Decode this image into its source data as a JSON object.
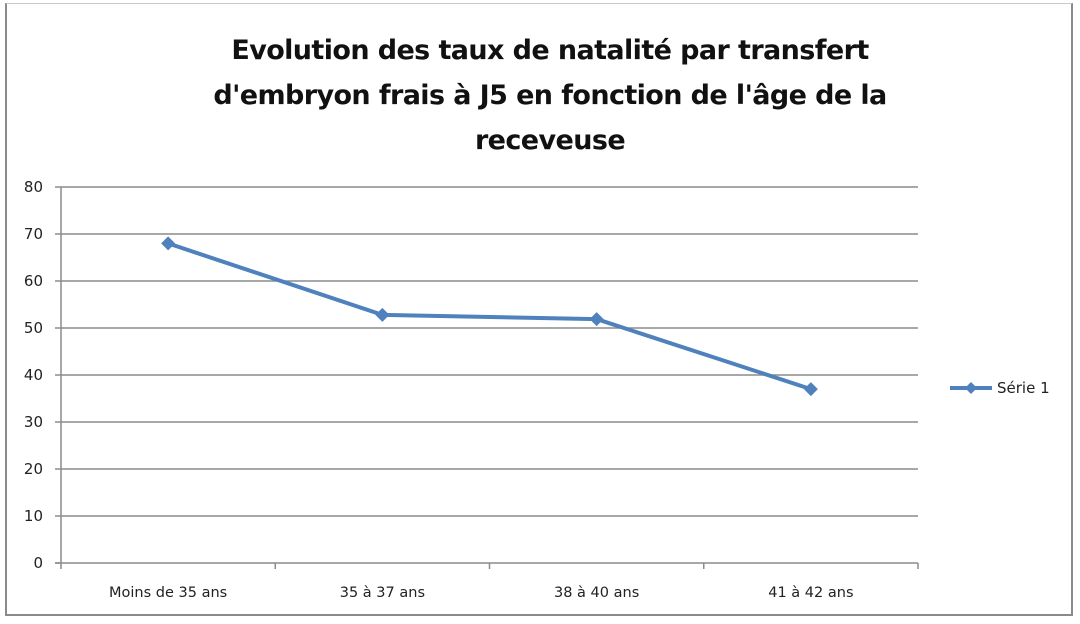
{
  "chart_data": {
    "type": "line",
    "title": "Evolution des taux de natalité par transfert d'embryon frais à J5 en fonction de l'âge de la receveuse",
    "title_lines": [
      "Evolution des taux de natalité par transfert",
      "d'embryon frais à J5 en fonction de l'âge de la",
      "receveuse"
    ],
    "categories": [
      "Moins de 35 ans",
      "35 à 37 ans",
      "38 à 40 ans",
      "41 à 42 ans"
    ],
    "series": [
      {
        "name": "Série 1",
        "values": [
          68,
          52.8,
          51.9,
          37
        ],
        "color": "#4F81BD",
        "marker": "diamond"
      }
    ],
    "xlabel": "",
    "ylabel": "",
    "ylim": [
      0,
      80
    ],
    "yticks": [
      "0",
      "10",
      "20",
      "30",
      "40",
      "50",
      "60",
      "70",
      "80"
    ],
    "grid": true,
    "legend_position": "right"
  },
  "legend": {
    "label": "Série 1"
  }
}
